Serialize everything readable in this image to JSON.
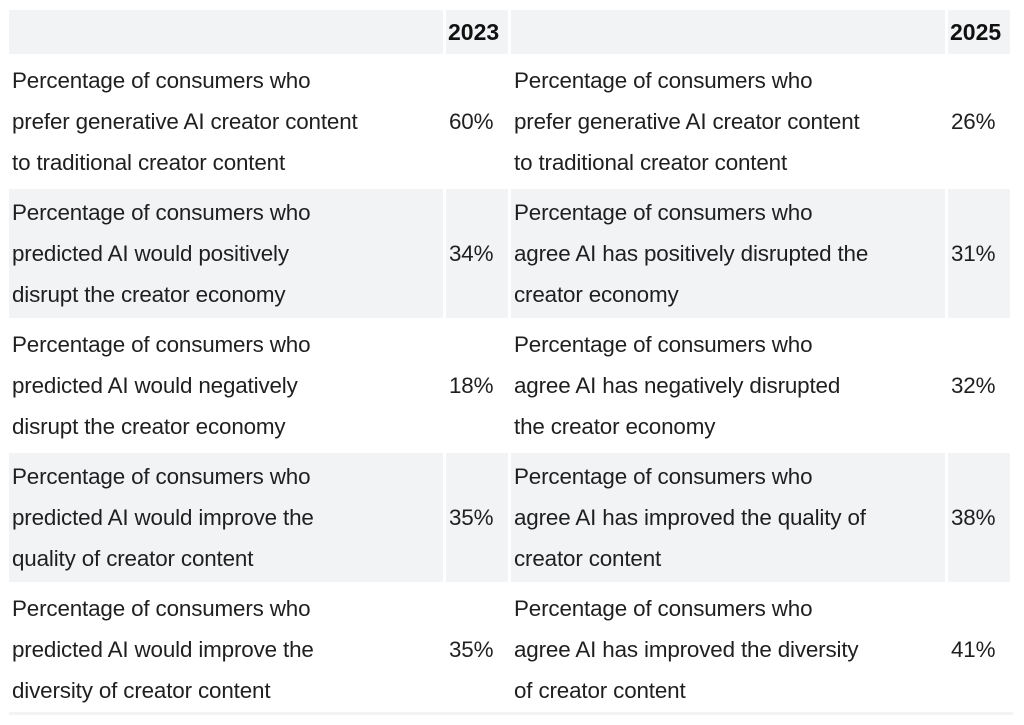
{
  "table": {
    "headers": [
      "",
      "2023",
      "",
      "2025"
    ],
    "rows": [
      {
        "label_2023": [
          "Percentage of consumers who",
          "prefer generative AI creator content",
          "to traditional creator content"
        ],
        "value_2023": "60%",
        "label_2025": [
          "Percentage of consumers who",
          "prefer generative AI creator content",
          "to traditional creator content"
        ],
        "value_2025": "26%"
      },
      {
        "label_2023": [
          "Percentage of consumers who",
          "predicted AI would positively",
          "disrupt the creator economy"
        ],
        "value_2023": "34%",
        "label_2025": [
          "Percentage of consumers who",
          "agree AI has positively disrupted the",
          "creator economy"
        ],
        "value_2025": "31%"
      },
      {
        "label_2023": [
          "Percentage of consumers who",
          "predicted AI would negatively",
          "disrupt the creator economy"
        ],
        "value_2023": "18%",
        "label_2025": [
          "Percentage of consumers who",
          "agree AI has negatively disrupted",
          "the creator economy"
        ],
        "value_2025": "32%"
      },
      {
        "label_2023": [
          "Percentage of consumers who",
          "predicted AI would improve the",
          "quality of creator content"
        ],
        "value_2023": "35%",
        "label_2025": [
          "Percentage of consumers who",
          "agree AI has improved the quality of",
          "creator content"
        ],
        "value_2025": "38%"
      },
      {
        "label_2023": [
          "Percentage of consumers who",
          "predicted AI would improve the",
          "diversity of creator content"
        ],
        "value_2023": "35%",
        "label_2025": [
          "Percentage of consumers who",
          "agree AI has improved the diversity",
          "of creator content"
        ],
        "value_2025": "41%"
      }
    ]
  },
  "colors": {
    "shade": "#f2f3f5",
    "text": "#1f1f1f"
  }
}
